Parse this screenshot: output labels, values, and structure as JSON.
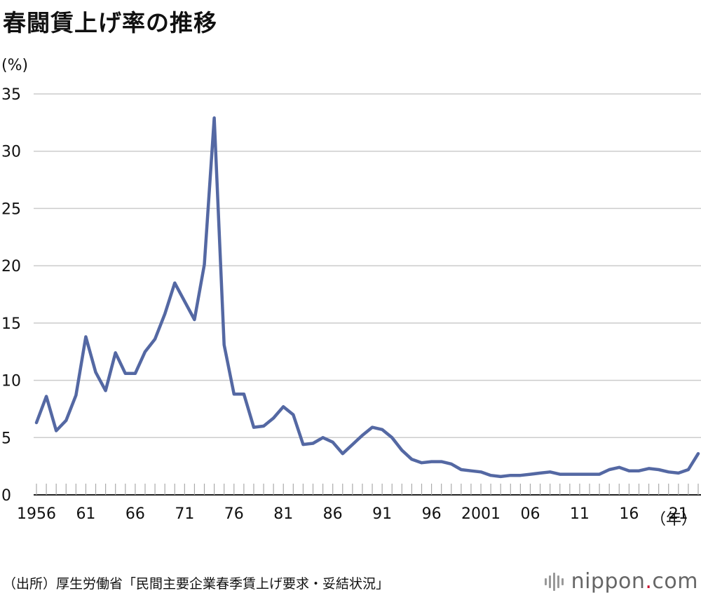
{
  "title": "春闘賃上げ率の推移",
  "source": "（出所）厚生労働省「民間主要企業春季賃上げ要求・妥結状況」",
  "brand": {
    "name": "nippon",
    "dot": ".",
    "tld": "com",
    "dot_color": "#c8102e"
  },
  "colors": {
    "line": "#5468a3",
    "grid": "#cccccc",
    "axis": "#222222"
  },
  "chart_data": {
    "type": "line",
    "unit_label": "(%)",
    "x_unit_label": "（年）",
    "ylim": [
      0,
      35
    ],
    "yticks": [
      0,
      5,
      10,
      15,
      20,
      25,
      30,
      35
    ],
    "xlim": [
      1956,
      2023
    ],
    "xtick_positions": [
      1956,
      1961,
      1966,
      1971,
      1976,
      1981,
      1986,
      1991,
      1996,
      2001,
      2006,
      2011,
      2016,
      2021
    ],
    "xtick_labels": [
      "1956",
      "61",
      "66",
      "71",
      "76",
      "81",
      "86",
      "91",
      "96",
      "2001",
      "06",
      "11",
      "16",
      "21"
    ],
    "grid": "horizontal",
    "series": [
      {
        "x": [
          1956,
          1957,
          1958,
          1959,
          1960,
          1961,
          1962,
          1963,
          1964,
          1965,
          1966,
          1967,
          1968,
          1969,
          1970,
          1971,
          1972,
          1973,
          1974,
          1975,
          1976,
          1977,
          1978,
          1979,
          1980,
          1981,
          1982,
          1983,
          1984,
          1985,
          1986,
          1987,
          1988,
          1989,
          1990,
          1991,
          1992,
          1993,
          1994,
          1995,
          1996,
          1997,
          1998,
          1999,
          2000,
          2001,
          2002,
          2003,
          2004,
          2005,
          2006,
          2007,
          2008,
          2009,
          2010,
          2011,
          2012,
          2013,
          2014,
          2015,
          2016,
          2017,
          2018,
          2019,
          2020,
          2021,
          2022,
          2023
        ],
        "values": [
          6.3,
          8.6,
          5.6,
          6.5,
          8.7,
          13.8,
          10.7,
          9.1,
          12.4,
          10.6,
          10.6,
          12.5,
          13.6,
          15.8,
          18.5,
          16.9,
          15.3,
          20.1,
          32.9,
          13.1,
          8.8,
          8.8,
          5.9,
          6.0,
          6.7,
          7.7,
          7.0,
          4.4,
          4.5,
          5.0,
          4.6,
          3.6,
          4.4,
          5.2,
          5.9,
          5.7,
          5.0,
          3.9,
          3.1,
          2.8,
          2.9,
          2.9,
          2.7,
          2.2,
          2.1,
          2.0,
          1.7,
          1.6,
          1.7,
          1.7,
          1.8,
          1.9,
          2.0,
          1.8,
          1.8,
          1.8,
          1.8,
          1.8,
          2.2,
          2.4,
          2.1,
          2.1,
          2.3,
          2.2,
          2.0,
          1.9,
          2.2,
          3.6
        ]
      }
    ]
  }
}
